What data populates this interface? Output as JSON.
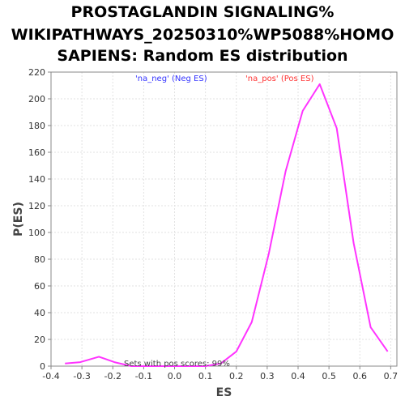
{
  "chart_data": {
    "type": "line",
    "title_lines": [
      "PROSTAGLANDIN SIGNALING%",
      "WIKIPATHWAYS_20250310%WP5088%HOMO",
      "SAPIENS: Random ES distribution"
    ],
    "xlabel": "ES",
    "ylabel": "P(ES)",
    "xlim": [
      -0.4,
      0.72
    ],
    "ylim": [
      0,
      220
    ],
    "xticks": [
      "-0.4",
      "-0.3",
      "-0.2",
      "-0.1",
      "0.0",
      "0.1",
      "0.2",
      "0.3",
      "0.4",
      "0.5",
      "0.6",
      "0.7"
    ],
    "xtick_values": [
      -0.4,
      -0.3,
      -0.2,
      -0.1,
      0.0,
      0.1,
      0.2,
      0.3,
      0.4,
      0.5,
      0.6,
      0.7
    ],
    "yticks": [
      "0",
      "20",
      "40",
      "60",
      "80",
      "100",
      "120",
      "140",
      "160",
      "180",
      "200",
      "220"
    ],
    "ytick_values": [
      0,
      20,
      40,
      60,
      80,
      100,
      120,
      140,
      160,
      180,
      200,
      220
    ],
    "grid": true,
    "legend": [
      {
        "label": "'na_neg' (Neg ES)",
        "color": "#3333ff"
      },
      {
        "label": "'na_pos' (Pos ES)",
        "color": "#ff3333"
      }
    ],
    "annotation": "Sets with pos scores: 99%",
    "series": [
      {
        "color": "#ff33ff",
        "x": [
          -0.355,
          -0.305,
          -0.245,
          -0.195,
          -0.14,
          -0.08,
          -0.02,
          0.04,
          0.1,
          0.15,
          0.2,
          0.25,
          0.305,
          0.36,
          0.415,
          0.47,
          0.525,
          0.58,
          0.635,
          0.69
        ],
        "y": [
          2,
          3,
          7,
          3,
          0,
          0,
          0,
          0,
          0,
          2,
          11,
          33,
          84,
          146,
          191,
          211,
          178,
          92,
          29,
          11
        ]
      }
    ]
  }
}
